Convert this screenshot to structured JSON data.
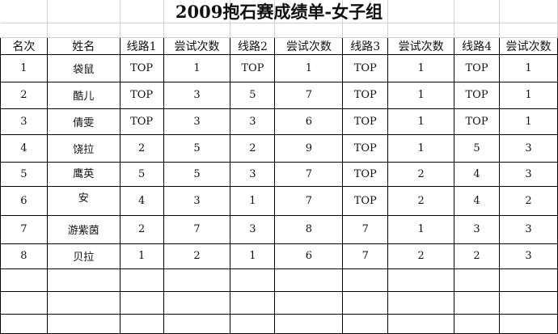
{
  "title": "2009抱石赛成绩单-女子组",
  "headers": [
    "名次",
    "姓名",
    "线路1",
    "尝试次数",
    "线路2",
    "尝试次数",
    "线路3",
    "尝试次数",
    "线路4",
    "尝试次数"
  ],
  "rows": [
    [
      "1",
      "袋鼠",
      "TOP",
      "1",
      "TOP",
      "1",
      "TOP",
      "1",
      "TOP",
      "1"
    ],
    [
      "2",
      "酷儿",
      "TOP",
      "3",
      "5",
      "7",
      "TOP",
      "1",
      "TOP",
      "1"
    ],
    [
      "3",
      "倩雯",
      "TOP",
      "3",
      "3",
      "6",
      "TOP",
      "1",
      "TOP",
      "1"
    ],
    [
      "4",
      "饶拉",
      "2",
      "5",
      "2",
      "9",
      "TOP",
      "1",
      "5",
      "3"
    ],
    [
      "5",
      "鹰英",
      "5",
      "5",
      "3",
      "7",
      "TOP",
      "2",
      "4",
      "3"
    ],
    [
      "6",
      "安",
      "4",
      "3",
      "1",
      "7",
      "TOP",
      "2",
      "4",
      "2"
    ],
    [
      "7",
      "游紫茵",
      "2",
      "7",
      "3",
      "8",
      "7",
      "1",
      "3",
      "3"
    ],
    [
      "8",
      "贝拉",
      "1",
      "2",
      "1",
      "6",
      "7",
      "2",
      "2",
      "3"
    ]
  ]
}
